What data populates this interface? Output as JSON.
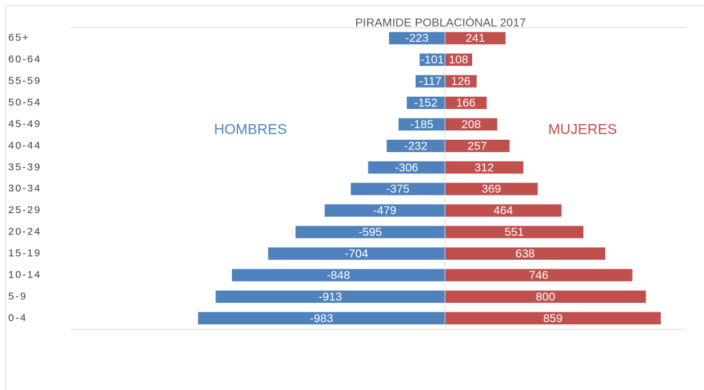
{
  "chart_data": {
    "type": "pyramid",
    "title": "PIRAMIDE POBLACIÓNAL 2017",
    "categories": [
      "65+",
      "60-64",
      "55-59",
      "50-54",
      "45-49",
      "40-44",
      "35-39",
      "30-34",
      "25-29",
      "20-24",
      "15-19",
      "10-14",
      "5-9",
      "0-4"
    ],
    "series": [
      {
        "name": "HOMBRES",
        "color": "#4f81bd",
        "values": [
          -223,
          -101,
          -117,
          -152,
          -185,
          -232,
          -306,
          -375,
          -479,
          -595,
          -704,
          -848,
          -913,
          -983
        ]
      },
      {
        "name": "MUJERES",
        "color": "#c0504d",
        "values": [
          241,
          108,
          126,
          166,
          208,
          257,
          312,
          369,
          464,
          551,
          638,
          746,
          800,
          859
        ]
      }
    ],
    "xlim": [
      -1490,
      960
    ]
  }
}
